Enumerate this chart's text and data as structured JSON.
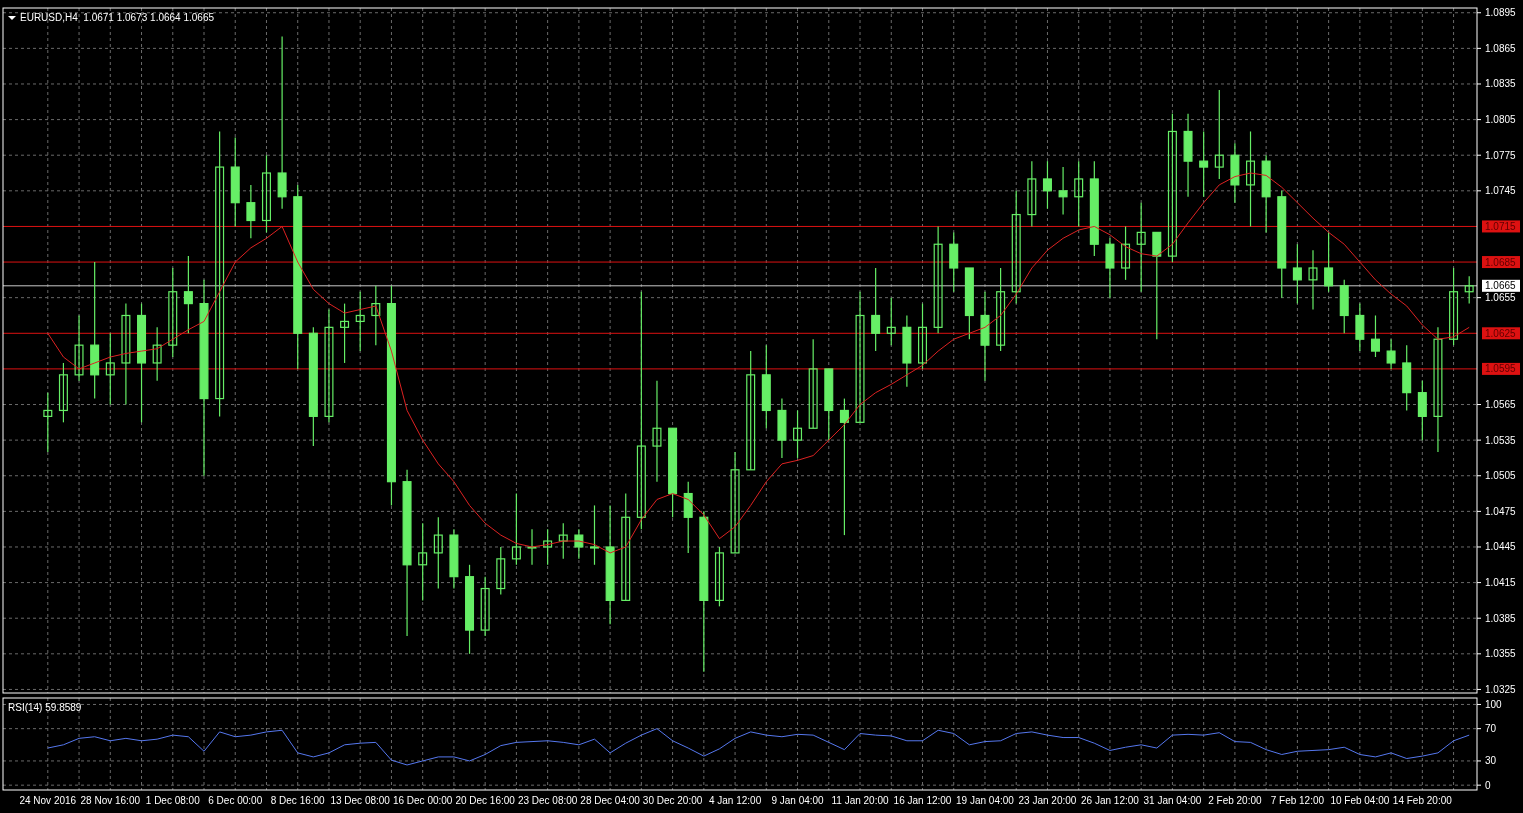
{
  "chart_data": [
    {
      "type": "candlestick",
      "title": "EURUSD,H4  1.0671 1.0673 1.0664 1.0665",
      "categories": [
        null,
        null,
        null,
        null,
        null,
        null,
        null,
        null,
        null,
        null,
        null,
        null,
        null,
        null,
        null,
        null,
        null,
        null,
        null,
        null,
        null,
        null,
        null,
        null,
        null,
        null,
        null,
        null,
        null,
        null,
        null,
        null,
        null,
        null,
        null,
        null,
        null,
        null,
        null,
        null,
        null,
        null,
        null,
        null,
        null,
        null,
        null,
        null,
        null,
        null,
        null,
        null,
        null,
        null,
        null,
        null,
        null,
        null,
        null,
        null,
        null,
        null,
        null,
        null,
        null,
        null,
        null,
        null,
        null,
        null,
        null,
        null,
        null,
        null,
        null,
        null,
        null,
        null,
        null,
        null,
        null,
        null,
        null,
        null,
        null,
        null,
        null,
        null,
        null,
        null,
        null,
        null
      ],
      "series": [
        {
          "color": "#66ee66",
          "ohlc": [
            [
              1.0555,
              1.0575,
              1.0525,
              1.056
            ],
            [
              1.056,
              1.06,
              1.055,
              1.059
            ],
            [
              1.059,
              1.064,
              1.0585,
              1.0615
            ],
            [
              1.0615,
              1.0685,
              1.057,
              1.059
            ],
            [
              1.059,
              1.0625,
              1.0565,
              1.06
            ],
            [
              1.06,
              1.065,
              1.0565,
              1.064
            ],
            [
              1.064,
              1.065,
              1.055,
              1.06
            ],
            [
              1.06,
              1.063,
              1.0585,
              1.0615
            ],
            [
              1.0615,
              1.068,
              1.0605,
              1.066
            ],
            [
              1.066,
              1.069,
              1.0625,
              1.065
            ],
            [
              1.065,
              1.067,
              1.0505,
              1.057
            ],
            [
              1.057,
              1.0795,
              1.0555,
              1.0765
            ],
            [
              1.0765,
              1.079,
              1.0715,
              1.0735
            ],
            [
              1.0735,
              1.075,
              1.0705,
              1.072
            ],
            [
              1.072,
              1.0775,
              1.071,
              1.076
            ],
            [
              1.076,
              1.0875,
              1.073,
              1.074
            ],
            [
              1.074,
              1.075,
              1.0595,
              1.0625
            ],
            [
              1.0625,
              1.063,
              1.053,
              1.0555
            ],
            [
              1.0555,
              1.0645,
              1.055,
              1.063
            ],
            [
              1.063,
              1.065,
              1.06,
              1.0635
            ],
            [
              1.0635,
              1.066,
              1.061,
              1.064
            ],
            [
              1.064,
              1.0665,
              1.0615,
              1.065
            ],
            [
              1.065,
              1.0665,
              1.048,
              1.05
            ],
            [
              1.05,
              1.051,
              1.037,
              1.043
            ],
            [
              1.043,
              1.0465,
              1.04,
              1.044
            ],
            [
              1.044,
              1.047,
              1.041,
              1.0455
            ],
            [
              1.0455,
              1.046,
              1.041,
              1.042
            ],
            [
              1.042,
              1.043,
              1.0355,
              1.0375
            ],
            [
              1.0375,
              1.042,
              1.037,
              1.041
            ],
            [
              1.041,
              1.0445,
              1.0405,
              1.0435
            ],
            [
              1.0435,
              1.049,
              1.043,
              1.0445
            ],
            [
              1.0445,
              1.046,
              1.043,
              1.0445
            ],
            [
              1.0445,
              1.046,
              1.043,
              1.045
            ],
            [
              1.045,
              1.0465,
              1.0435,
              1.0455
            ],
            [
              1.0455,
              1.046,
              1.0435,
              1.0445
            ],
            [
              1.0445,
              1.048,
              1.043,
              1.0445
            ],
            [
              1.0445,
              1.048,
              1.038,
              1.04
            ],
            [
              1.04,
              1.049,
              1.04,
              1.047
            ],
            [
              1.047,
              1.066,
              1.046,
              1.053
            ],
            [
              1.053,
              1.0585,
              1.05,
              1.0545
            ],
            [
              1.0545,
              1.0545,
              1.047,
              1.049
            ],
            [
              1.049,
              1.05,
              1.044,
              1.047
            ],
            [
              1.047,
              1.0475,
              1.034,
              1.04
            ],
            [
              1.04,
              1.0445,
              1.0395,
              1.044
            ],
            [
              1.044,
              1.0525,
              1.044,
              1.051
            ],
            [
              1.051,
              1.061,
              1.051,
              1.059
            ],
            [
              1.059,
              1.0615,
              1.0545,
              1.056
            ],
            [
              1.056,
              1.057,
              1.052,
              1.0535
            ],
            [
              1.0535,
              1.056,
              1.052,
              1.0545
            ],
            [
              1.0545,
              1.062,
              1.0545,
              1.0595
            ],
            [
              1.0595,
              1.0595,
              1.0535,
              1.056
            ],
            [
              1.056,
              1.057,
              1.0455,
              1.055
            ],
            [
              1.055,
              1.066,
              1.055,
              1.064
            ],
            [
              1.064,
              1.068,
              1.061,
              1.0625
            ],
            [
              1.0625,
              1.0655,
              1.0615,
              1.063
            ],
            [
              1.063,
              1.064,
              1.058,
              1.06
            ],
            [
              1.06,
              1.065,
              1.0595,
              1.063
            ],
            [
              1.063,
              1.0715,
              1.0625,
              1.07
            ],
            [
              1.07,
              1.071,
              1.066,
              1.068
            ],
            [
              1.068,
              1.068,
              1.062,
              1.064
            ],
            [
              1.064,
              1.066,
              1.0585,
              1.0615
            ],
            [
              1.0615,
              1.068,
              1.061,
              1.066
            ],
            [
              1.066,
              1.0745,
              1.065,
              1.0725
            ],
            [
              1.0725,
              1.077,
              1.0715,
              1.0755
            ],
            [
              1.0755,
              1.077,
              1.073,
              1.0745
            ],
            [
              1.0745,
              1.0765,
              1.0725,
              1.074
            ],
            [
              1.074,
              1.077,
              1.0715,
              1.0755
            ],
            [
              1.0755,
              1.077,
              1.069,
              1.07
            ],
            [
              1.07,
              1.0705,
              1.0655,
              1.068
            ],
            [
              1.068,
              1.0715,
              1.067,
              1.07
            ],
            [
              1.07,
              1.0735,
              1.066,
              1.071
            ],
            [
              1.071,
              1.071,
              1.062,
              1.069
            ],
            [
              1.069,
              1.081,
              1.0685,
              1.0795
            ],
            [
              1.0795,
              1.081,
              1.074,
              1.077
            ],
            [
              1.077,
              1.0795,
              1.074,
              1.0765
            ],
            [
              1.0765,
              1.083,
              1.0755,
              1.0775
            ],
            [
              1.0775,
              1.0785,
              1.0735,
              1.075
            ],
            [
              1.075,
              1.0795,
              1.0715,
              1.077
            ],
            [
              1.077,
              1.0775,
              1.071,
              1.074
            ],
            [
              1.074,
              1.0745,
              1.0655,
              1.068
            ],
            [
              1.068,
              1.07,
              1.065,
              1.067
            ],
            [
              1.067,
              1.0695,
              1.0645,
              1.068
            ],
            [
              1.068,
              1.071,
              1.066,
              1.0665
            ],
            [
              1.0665,
              1.067,
              1.0625,
              1.064
            ],
            [
              1.064,
              1.065,
              1.061,
              1.062
            ],
            [
              1.062,
              1.064,
              1.0605,
              1.061
            ],
            [
              1.061,
              1.062,
              1.0595,
              1.06
            ],
            [
              1.06,
              1.0615,
              1.056,
              1.0575
            ],
            [
              1.0575,
              1.0585,
              1.0535,
              1.0555
            ],
            [
              1.0555,
              1.063,
              1.0525,
              1.062
            ],
            [
              1.062,
              1.068,
              1.0615,
              1.066
            ],
            [
              1.066,
              1.0673,
              1.065,
              1.0665
            ]
          ]
        },
        {
          "type": "line",
          "color": "#dd2222",
          "values": [
            1.0625,
            1.0605,
            1.0595,
            1.06,
            1.0605,
            1.0608,
            1.061,
            1.0612,
            1.062,
            1.0628,
            1.0635,
            1.066,
            1.0685,
            1.0697,
            1.0705,
            1.0715,
            1.0685,
            1.0662,
            1.065,
            1.0642,
            1.0645,
            1.0648,
            1.061,
            1.056,
            1.0535,
            1.0515,
            1.05,
            1.048,
            1.0465,
            1.0455,
            1.0448,
            1.0445,
            1.0447,
            1.045,
            1.045,
            1.0447,
            1.044,
            1.0445,
            1.0468,
            1.0485,
            1.049,
            1.0485,
            1.0472,
            1.0452,
            1.0462,
            1.048,
            1.05,
            1.0515,
            1.0518,
            1.0522,
            1.0535,
            1.0548,
            1.0565,
            1.0575,
            1.0582,
            1.059,
            1.0598,
            1.061,
            1.062,
            1.0625,
            1.063,
            1.064,
            1.0658,
            1.068,
            1.0695,
            1.0705,
            1.0712,
            1.0715,
            1.0708,
            1.0698,
            1.0692,
            1.069,
            1.07,
            1.0718,
            1.0735,
            1.075,
            1.0757,
            1.076,
            1.0758,
            1.0748,
            1.0735,
            1.0722,
            1.071,
            1.07,
            1.0685,
            1.067,
            1.0658,
            1.0648,
            1.0632,
            1.062,
            1.0622,
            1.063
          ]
        }
      ],
      "ylim": [
        1.0322,
        1.0899
      ],
      "yticks": [
        1.0895,
        1.0865,
        1.0835,
        1.0805,
        1.0775,
        1.0745,
        1.0655,
        1.0565,
        1.0535,
        1.0505,
        1.0475,
        1.0445,
        1.0415,
        1.0385,
        1.0355,
        1.0325
      ],
      "ref_lines": [
        {
          "axis": "y",
          "value": 1.0715,
          "label": "1.0715",
          "color": "#dd1111"
        },
        {
          "axis": "y",
          "value": 1.0685,
          "label": "1.0685",
          "color": "#dd1111"
        },
        {
          "axis": "y",
          "value": 1.0665,
          "label": "1.0665",
          "color": "#c8c8c8"
        },
        {
          "axis": "y",
          "value": 1.0625,
          "label": "1.0625",
          "color": "#dd1111"
        },
        {
          "axis": "y",
          "value": 1.0595,
          "label": "1.0595",
          "color": "#dd1111"
        }
      ],
      "grid": true,
      "tick_labels": "y"
    },
    {
      "type": "line",
      "title": "RSI(14) 59.8589",
      "categories": [
        "24 Nov 2016",
        null,
        null,
        null,
        "28 Nov 16:00",
        null,
        null,
        null,
        "1 Dec 08:00",
        null,
        null,
        null,
        "6 Dec 00:00",
        null,
        null,
        null,
        "8 Dec 16:00",
        null,
        null,
        null,
        "13 Dec 08:00",
        null,
        null,
        null,
        "16 Dec 00:00",
        null,
        null,
        null,
        "20 Dec 16:00",
        null,
        null,
        null,
        "23 Dec 08:00",
        null,
        null,
        null,
        "28 Dec 04:00",
        null,
        null,
        null,
        "30 Dec 20:00",
        null,
        null,
        null,
        "4 Jan 12:00",
        null,
        null,
        null,
        "9 Jan 04:00",
        null,
        null,
        null,
        "11 Jan 20:00",
        null,
        null,
        null,
        "16 Jan 12:00",
        null,
        null,
        null,
        "19 Jan 04:00",
        null,
        null,
        null,
        "23 Jan 20:00",
        null,
        null,
        null,
        "26 Jan 12:00",
        null,
        null,
        null,
        "31 Jan 04:00",
        null,
        null,
        null,
        "2 Feb 20:00",
        null,
        null,
        null,
        "7 Feb 12:00",
        null,
        null,
        null,
        "10 Feb 04:00",
        null,
        null,
        null,
        "14 Feb 20:00",
        null,
        null,
        null
      ],
      "series": [
        {
          "color": "#5577ee",
          "values": [
            46,
            50,
            58,
            60,
            55,
            58,
            55,
            57,
            62,
            60,
            42,
            66,
            60,
            62,
            66,
            68,
            40,
            35,
            40,
            50,
            52,
            53,
            31,
            25,
            30,
            35,
            35,
            30,
            38,
            49,
            53,
            54,
            55,
            53,
            50,
            57,
            40,
            52,
            62,
            70,
            55,
            46,
            36,
            45,
            58,
            66,
            62,
            60,
            63,
            62,
            53,
            44,
            64,
            62,
            61,
            55,
            55,
            68,
            64,
            50,
            54,
            55,
            64,
            66,
            62,
            59,
            59,
            52,
            43,
            47,
            50,
            46,
            62,
            63,
            62,
            65,
            54,
            53,
            44,
            38,
            42,
            43,
            44,
            47,
            38,
            35,
            40,
            33,
            36,
            40,
            55,
            62
          ]
        }
      ],
      "ylim": [
        -6,
        108
      ],
      "yticks": [
        0,
        30,
        70,
        100
      ],
      "grid": true
    }
  ]
}
